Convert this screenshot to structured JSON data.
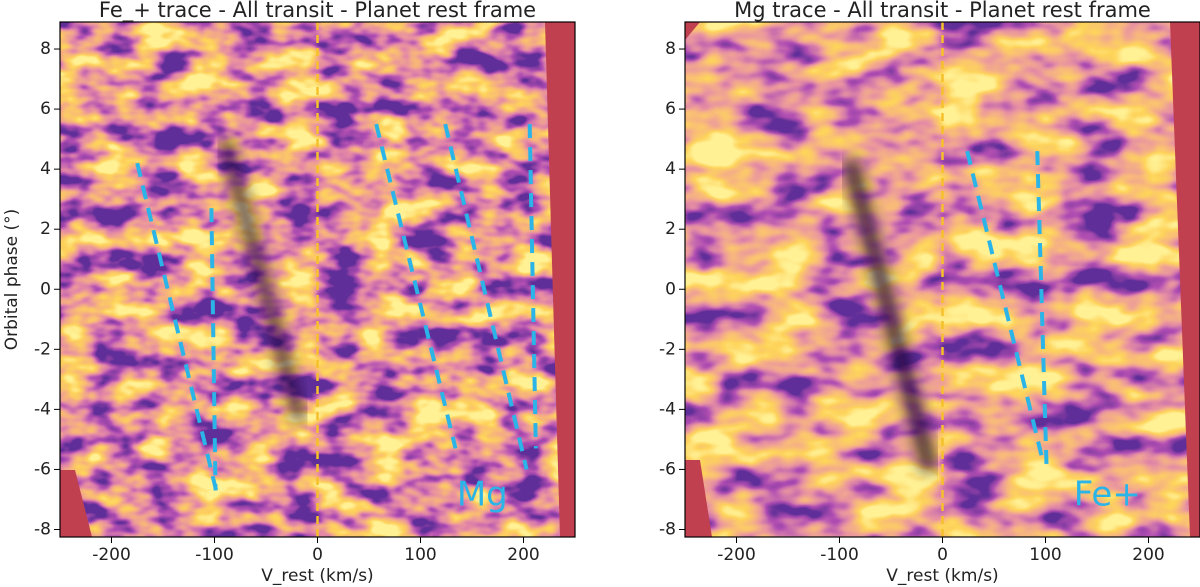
{
  "chart_data": [
    {
      "type": "heatmap",
      "title": "Fe_+ trace - All transit - Planet rest frame",
      "xlabel": "V_rest (km/s)",
      "ylabel": "Orbital phase (°)",
      "xlim": [
        -250,
        250
      ],
      "ylim": [
        -8.25,
        8.9
      ],
      "xticks": [
        -200,
        -100,
        0,
        100,
        200
      ],
      "yticks": [
        -8,
        -6,
        -4,
        -2,
        0,
        2,
        4,
        6,
        8
      ],
      "vline": 0,
      "vline_color": "#f5c02a",
      "guide_color": "#2ab4e8",
      "annotation": "Mg",
      "guides": [
        {
          "x": [
            -175,
            -97
          ],
          "y": [
            4.2,
            -6.9
          ]
        },
        {
          "x": [
            -103,
            -99
          ],
          "y": [
            2.7,
            -6.7
          ]
        },
        {
          "x": [
            57,
            134
          ],
          "y": [
            5.5,
            -5.3
          ]
        },
        {
          "x": [
            124,
            203
          ],
          "y": [
            5.5,
            -6
          ]
        },
        {
          "x": [
            206,
            212
          ],
          "y": [
            5.5,
            -5.3
          ]
        }
      ]
    },
    {
      "type": "heatmap",
      "title": "Mg trace - All transit - Planet rest frame",
      "xlabel": "V_rest (km/s)",
      "xlim": [
        -250,
        250
      ],
      "ylim": [
        -8.25,
        8.9
      ],
      "xticks": [
        -200,
        -100,
        0,
        100,
        200
      ],
      "yticks": [
        -8,
        -6,
        -4,
        -2,
        0,
        2,
        4,
        6,
        8
      ],
      "vline": 0,
      "vline_color": "#f5c02a",
      "guide_color": "#2ab4e8",
      "annotation": "Fe+",
      "guides": [
        {
          "x": [
            24,
            98
          ],
          "y": [
            4.6,
            -5.8
          ]
        },
        {
          "x": [
            92,
            101
          ],
          "y": [
            4.6,
            -5.9
          ]
        }
      ]
    }
  ]
}
